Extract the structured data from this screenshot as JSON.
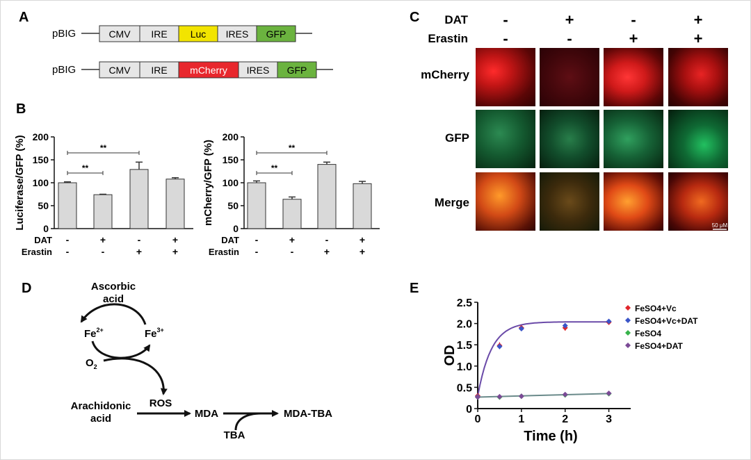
{
  "panel_labels": {
    "A": "A",
    "B": "B",
    "C": "C",
    "D": "D",
    "E": "E"
  },
  "panelA": {
    "construct1": {
      "name": "pBIG",
      "segments": [
        "CMV",
        "IRE",
        "Luc",
        "IRES",
        "GFP"
      ]
    },
    "construct2": {
      "name": "pBIG",
      "segments": [
        "CMV",
        "IRE",
        "mCherry",
        "IRES",
        "GFP"
      ]
    },
    "colors": {
      "luc": "#f2e400",
      "mcherry": "#e8272d",
      "gfp": "#6bb33f",
      "default": "#e6e6e6"
    }
  },
  "panelB": {
    "plot1": {
      "ylabel": "Luciferase/GFP (%)"
    },
    "plot2": {
      "ylabel": "mCherry/GFP (%)"
    },
    "sig": "**",
    "dat_label": "DAT",
    "erastin_label": "Erastin",
    "dat_signs": [
      "-",
      "+",
      "-",
      "+"
    ],
    "erastin_signs": [
      "-",
      "-",
      "+",
      "+"
    ]
  },
  "panelC": {
    "dat_label": "DAT",
    "erastin_label": "Erastin",
    "dat_signs": [
      "-",
      "+",
      "-",
      "+"
    ],
    "erastin_signs": [
      "-",
      "-",
      "+",
      "+"
    ],
    "rows": [
      "mCherry",
      "GFP",
      "Merge"
    ],
    "scale_bar": "50 μM"
  },
  "panelD": {
    "ascorbic": "Ascorbic",
    "acid": "acid",
    "fe2": "Fe",
    "fe2_sup": "2+",
    "fe3": "Fe",
    "fe3_sup": "3+",
    "o2": "O",
    "o2_sub": "2",
    "ros": "ROS",
    "arachidonic": "Arachidonic",
    "acid2": "acid",
    "mda": "MDA",
    "mda_tba": "MDA-TBA",
    "tba": "TBA"
  },
  "chart_data": [
    {
      "type": "bar",
      "categories": [
        "1",
        "2",
        "3",
        "4"
      ],
      "values": [
        100,
        74,
        129,
        108
      ],
      "errors": [
        2,
        1,
        16,
        3
      ],
      "ylabel": "Luciferase/GFP (%)",
      "ylim": [
        0,
        200
      ],
      "yticks": [
        0,
        50,
        100,
        150,
        200
      ],
      "bar_color": "#d9d9d9",
      "significance": [
        {
          "from": 0,
          "to": 1,
          "label": "**"
        },
        {
          "from": 0,
          "to": 2,
          "label": "**"
        }
      ]
    },
    {
      "type": "bar",
      "categories": [
        "1",
        "2",
        "3",
        "4"
      ],
      "values": [
        100,
        64,
        140,
        98
      ],
      "errors": [
        4,
        5,
        5,
        5
      ],
      "ylabel": "mCherry/GFP (%)",
      "ylim": [
        0,
        200
      ],
      "yticks": [
        0,
        50,
        100,
        150,
        200
      ],
      "bar_color": "#d9d9d9",
      "significance": [
        {
          "from": 0,
          "to": 1,
          "label": "**"
        },
        {
          "from": 0,
          "to": 2,
          "label": "**"
        }
      ]
    },
    {
      "type": "line",
      "xlabel": "Time (h)",
      "ylabel": "OD",
      "xlim": [
        0,
        3.5
      ],
      "ylim": [
        0,
        2.5
      ],
      "xticks": [
        0,
        1,
        2,
        3
      ],
      "yticks": [
        0,
        0.5,
        1.0,
        1.5,
        2.0,
        2.5
      ],
      "ytick_labels": [
        "0",
        "0.5",
        "1.0",
        "1.5",
        "2.0",
        "2.5"
      ],
      "legend_position": "top-right",
      "series": [
        {
          "name": "FeSO4+Vc",
          "color": "#e0252a",
          "x": [
            0,
            0.5,
            1,
            2,
            3
          ],
          "y": [
            0.3,
            1.48,
            1.9,
            1.9,
            2.03
          ],
          "err": [
            0.02,
            0.08,
            0.03,
            0.07,
            0.06
          ]
        },
        {
          "name": "FeSO4+Vc+DAT",
          "color": "#3b55c8",
          "x": [
            0,
            0.5,
            1,
            2,
            3
          ],
          "y": [
            0.28,
            1.46,
            1.88,
            1.95,
            2.05
          ],
          "err": [
            0.02,
            0.06,
            0.03,
            0.05,
            0.05
          ]
        },
        {
          "name": "FeSO4",
          "color": "#36b34a",
          "x": [
            0,
            0.5,
            1,
            2,
            3
          ],
          "y": [
            0.27,
            0.27,
            0.29,
            0.32,
            0.35
          ],
          "err": [
            0.02,
            0.02,
            0.02,
            0.02,
            0.02
          ]
        },
        {
          "name": "FeSO4+DAT",
          "color": "#7b4a96",
          "x": [
            0,
            0.5,
            1,
            2,
            3
          ],
          "y": [
            0.27,
            0.28,
            0.29,
            0.33,
            0.36
          ],
          "err": [
            0.02,
            0.02,
            0.02,
            0.02,
            0.02
          ]
        }
      ],
      "fits": [
        {
          "color": "#6a4aa8",
          "plateau": 2.04,
          "y0": 0.29,
          "k": 3.2
        },
        {
          "color": "#6a8a8a",
          "slope": 0.028,
          "y0": 0.27
        }
      ]
    }
  ]
}
